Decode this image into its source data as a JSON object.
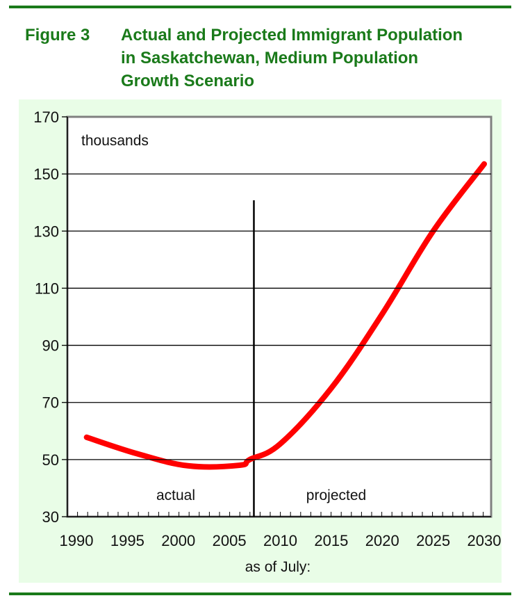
{
  "figure": {
    "number_label": "Figure 3",
    "title": "Actual and Projected Immigrant Population in Saskatchewan, Medium Population Growth Scenario",
    "title_lines": [
      "Actual and Projected Immigrant Population",
      "in Saskatchewan, Medium Population",
      "Growth Scenario"
    ]
  },
  "colors": {
    "accent_green": "#1a7a1a",
    "panel_bg": "#e9fde7",
    "series_red": "#ff0000"
  },
  "chart_data": {
    "type": "line",
    "title": "Actual and Projected Immigrant Population in Saskatchewan, Medium Population Growth Scenario",
    "xlabel": "as of July:",
    "ylabel": "thousands",
    "ylim": [
      30,
      170
    ],
    "xlim": [
      1990,
      2030
    ],
    "yticks": [
      30,
      50,
      70,
      90,
      110,
      130,
      150,
      170
    ],
    "xticks": [
      1990,
      1995,
      2000,
      2005,
      2010,
      2015,
      2020,
      2025,
      2030
    ],
    "grid": true,
    "divider_year": 2007,
    "annotations": [
      "actual",
      "projected"
    ],
    "series": [
      {
        "name": "Immigrant population",
        "x": [
          1991,
          1996,
          2001,
          2006,
          2007,
          2010,
          2015,
          2020,
          2025,
          2030
        ],
        "values": [
          57.8,
          52.0,
          47.8,
          48.0,
          50.0,
          55.5,
          75.0,
          101.0,
          130.0,
          153.5
        ]
      }
    ]
  },
  "labels": {
    "units": "thousands",
    "actual": "actual",
    "projected": "projected",
    "x_axis_title": "as of July:"
  }
}
